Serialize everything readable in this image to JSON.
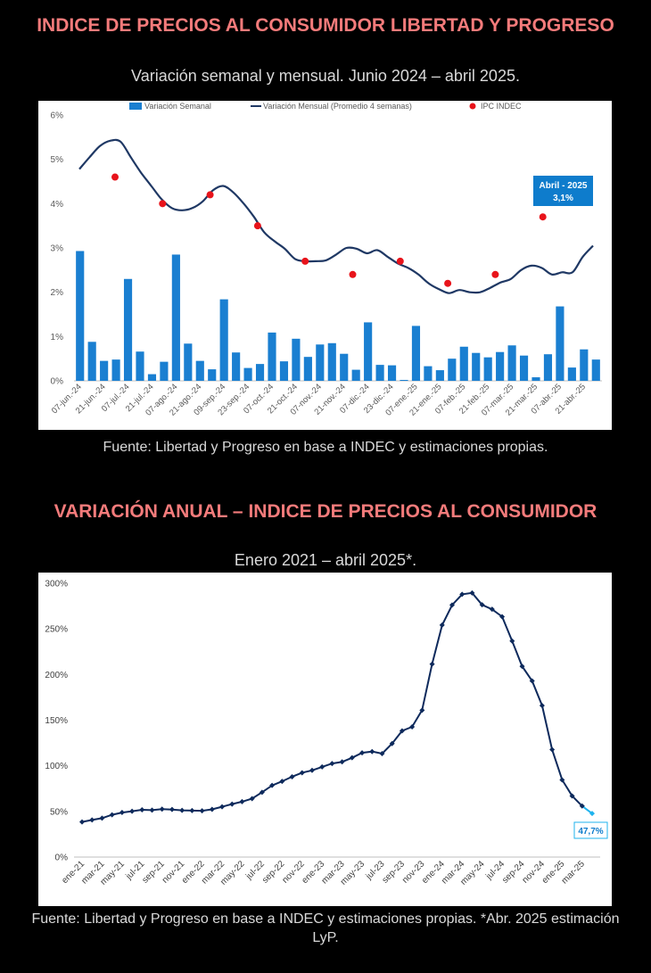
{
  "section1": {
    "title": "INDICE DE PRECIOS AL CONSUMIDOR LIBERTAD Y PROGRESO",
    "subtitle": "Variación semanal y mensual. Junio 2024 – abril 2025.",
    "source": "Fuente: Libertad y Progreso en base a INDEC y estimaciones propias."
  },
  "section2": {
    "title": "VARIACIÓN ANUAL – INDICE DE PRECIOS AL CONSUMIDOR",
    "subtitle": "Enero 2021 – abril 2025*.",
    "source": "Fuente: Libertad y Progreso en base a INDEC y estimaciones propias. *Abr. 2025 estimación LyP."
  },
  "colors": {
    "bar": "#1a7fd1",
    "line1": "#1f3864",
    "dot": "#e8141b",
    "line2": "#0e2a5c",
    "highlight": "#1fb3ee",
    "callout": "#0e7ccc"
  },
  "chart_data": [
    {
      "type": "bar",
      "legend": [
        "Variación Semanal",
        "Variación Mensual (Promedio 4 semanas)",
        "IPC INDEC"
      ],
      "ylim": [
        0,
        6
      ],
      "y_ticks": [
        "0%",
        "1%",
        "2%",
        "3%",
        "4%",
        "5%",
        "6%"
      ],
      "x_tick_labels": [
        "07-jun.-24",
        "21-jun.-24",
        "07-jul.-24",
        "21-jul.-24",
        "07-ago.-24",
        "21-ago.-24",
        "09-sep.-24",
        "23-sep.-24",
        "07-oct.-24",
        "21-oct.-24",
        "07-nov.-24",
        "21-nov.-24",
        "07-dic.-24",
        "23-dic.-24",
        "07-ene.-25",
        "21-ene.-25",
        "07-feb.-25",
        "21-feb.-25",
        "07-mar.-25",
        "21-mar.-25",
        "07-abr.-25",
        "21-abr.-25"
      ],
      "series": [
        {
          "name": "Variación Semanal",
          "type": "bar",
          "values": [
            2.93,
            0.88,
            0.45,
            0.48,
            2.3,
            0.66,
            0.15,
            0.43,
            2.85,
            0.84,
            0.45,
            0.26,
            1.84,
            0.64,
            0.29,
            0.38,
            1.09,
            0.44,
            0.95,
            0.54,
            0.82,
            0.85,
            0.61,
            0.25,
            1.32,
            0.36,
            0.35,
            0.02,
            1.24,
            0.33,
            0.24,
            0.5,
            0.77,
            0.63,
            0.53,
            0.65,
            0.8,
            0.57,
            0.08,
            0.6,
            1.68,
            0.3,
            0.71,
            0.48
          ]
        },
        {
          "name": "Variación Mensual (Promedio 4 semanas)",
          "type": "line",
          "values": [
            4.78,
            5.05,
            5.3,
            5.42,
            5.4,
            5.05,
            4.7,
            4.4,
            4.1,
            3.9,
            3.85,
            3.9,
            4.05,
            4.3,
            4.4,
            4.25,
            4.0,
            3.7,
            3.35,
            3.15,
            2.98,
            2.75,
            2.7,
            2.7,
            2.72,
            2.85,
            3.0,
            2.98,
            2.88,
            2.95,
            2.8,
            2.65,
            2.55,
            2.4,
            2.2,
            2.07,
            1.98,
            2.05,
            2.0,
            2.0,
            2.1,
            2.22,
            2.3,
            2.5,
            2.6,
            2.55,
            2.4,
            2.45,
            2.45,
            2.8,
            3.05
          ]
        },
        {
          "name": "IPC INDEC",
          "type": "scatter",
          "values": [
            4.6,
            4.0,
            4.2,
            3.5,
            2.7,
            2.4,
            2.7,
            2.2,
            2.4,
            3.7
          ]
        }
      ],
      "annotation": {
        "label": "Abril - 2025",
        "value": "3,1%"
      }
    },
    {
      "type": "line",
      "ylim": [
        0,
        300
      ],
      "y_ticks": [
        "0%",
        "50%",
        "100%",
        "150%",
        "200%",
        "250%",
        "300%"
      ],
      "x_tick_labels": [
        "ene-21",
        "mar-21",
        "may-21",
        "jul-21",
        "sep-21",
        "nov-21",
        "ene-22",
        "mar-22",
        "may-22",
        "jul-22",
        "sep-22",
        "nov-22",
        "ene-23",
        "mar-23",
        "may-23",
        "jul-23",
        "sep-23",
        "nov-23",
        "ene-24",
        "mar-24",
        "may-24",
        "jul-24",
        "sep-24",
        "nov-24",
        "ene-25",
        "mar-25"
      ],
      "series": [
        {
          "name": "",
          "values": [
            38.5,
            40.7,
            42.6,
            46.3,
            48.8,
            50.2,
            51.8,
            51.4,
            52.5,
            52.1,
            51.2,
            50.9,
            50.7,
            52.3,
            55.1,
            58.0,
            60.7,
            64.0,
            71.0,
            78.5,
            83.0,
            88.0,
            92.4,
            95.0,
            98.8,
            102.5,
            104.3,
            108.8,
            114.2,
            115.6,
            113.4,
            124.4,
            138.3,
            142.7,
            160.9,
            211.4,
            254.2,
            276.2,
            287.9,
            289.4,
            276.4,
            271.5,
            263.4,
            236.7,
            209.0,
            193.0,
            166.0,
            117.8,
            84.5,
            66.9,
            55.9,
            47.7
          ]
        }
      ],
      "annotation": {
        "value": "47,7%"
      }
    }
  ]
}
